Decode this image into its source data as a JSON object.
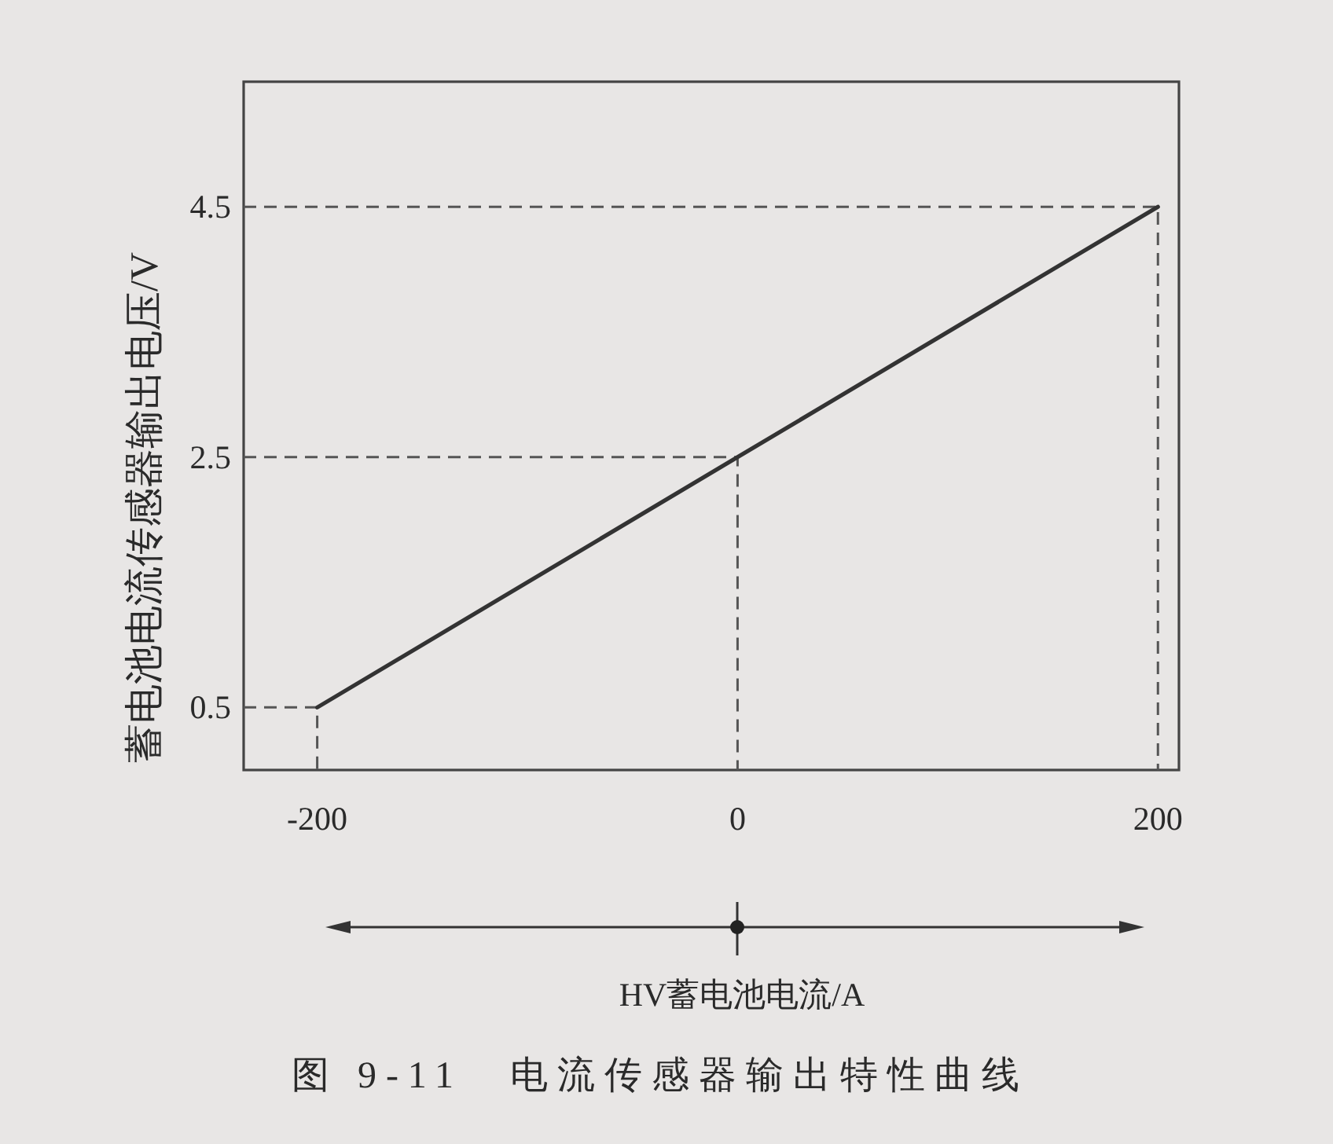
{
  "chart_data": {
    "type": "line",
    "title": "图 9-11　电流传感器输出特性曲线",
    "xlabel": "HV蓄电池电流/A",
    "ylabel": "蓄电池电流传感器输出电压/V",
    "x": [
      -200,
      0,
      200
    ],
    "series": [
      {
        "x": [
          -235,
          -200,
          -200
        ],
        "values": [
          0.5,
          0.5,
          0
        ],
        "color": "#555555",
        "line_style": "dashed"
      },
      {
        "x": [
          -235,
          0,
          0
        ],
        "values": [
          2.5,
          2.5,
          0
        ],
        "color": "#555555",
        "line_style": "dashed"
      },
      {
        "x": [
          -235,
          200,
          200
        ],
        "values": [
          4.5,
          4.5,
          0
        ],
        "color": "#555555",
        "line_style": "dashed"
      },
      {
        "color": "#333333",
        "values": [
          0.5,
          2.5,
          4.5
        ]
      }
    ],
    "xlim": [
      -235,
      210
    ],
    "ylim": [
      0,
      5.5
    ],
    "xticks": [
      -200,
      0,
      200
    ],
    "yticks": [
      0.5,
      2.5,
      4.5
    ],
    "line_style": "solid"
  }
}
